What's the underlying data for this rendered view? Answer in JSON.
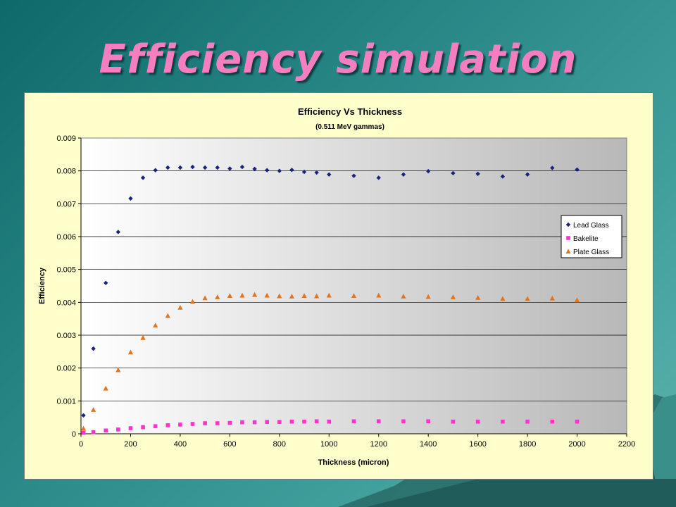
{
  "slide": {
    "title": "Efficiency simulation"
  },
  "chart_data": {
    "type": "scatter",
    "title": "Efficiency Vs Thickness",
    "subtitle": "(0.511 MeV gammas)",
    "xlabel": "Thickness (micron)",
    "ylabel": "Efficiency",
    "xlim": [
      0,
      2200
    ],
    "ylim": [
      0,
      0.009
    ],
    "xticks": [
      0,
      200,
      400,
      600,
      800,
      1000,
      1200,
      1400,
      1600,
      1800,
      2000,
      2200
    ],
    "yticks": [
      0,
      0.001,
      0.002,
      0.003,
      0.004,
      0.005,
      0.006,
      0.007,
      0.008,
      0.009
    ],
    "xtick_labels": [
      "0",
      "200",
      "400",
      "600",
      "800",
      "1000",
      "1200",
      "1400",
      "1600",
      "1800",
      "2000",
      "2200"
    ],
    "ytick_labels": [
      "0",
      "0.001",
      "0.002",
      "0.003",
      "0.004",
      "0.005",
      "0.006",
      "0.007",
      "0.008",
      "0.009"
    ],
    "grid": "horizontal",
    "legend_position": "right",
    "plot_background": "gradient white to gray",
    "series": [
      {
        "name": "Lead Glass",
        "marker": "diamond",
        "color": "#1a237e",
        "x": [
          10,
          50,
          100,
          150,
          200,
          250,
          300,
          350,
          400,
          450,
          500,
          550,
          600,
          650,
          700,
          750,
          800,
          850,
          900,
          950,
          1000,
          1100,
          1200,
          1300,
          1400,
          1500,
          1600,
          1700,
          1800,
          1900,
          2000
        ],
        "y": [
          0.00056,
          0.00259,
          0.00459,
          0.00614,
          0.00716,
          0.00779,
          0.00802,
          0.0081,
          0.0081,
          0.00812,
          0.0081,
          0.0081,
          0.00807,
          0.00812,
          0.00806,
          0.00802,
          0.008,
          0.00803,
          0.00797,
          0.00795,
          0.00789,
          0.00785,
          0.00779,
          0.00789,
          0.00799,
          0.00793,
          0.00791,
          0.00783,
          0.00789,
          0.00809,
          0.00804
        ]
      },
      {
        "name": "Bakelite",
        "marker": "square",
        "color": "#ff33cc",
        "x": [
          10,
          50,
          100,
          150,
          200,
          250,
          300,
          350,
          400,
          450,
          500,
          550,
          600,
          650,
          700,
          750,
          800,
          850,
          900,
          950,
          1000,
          1100,
          1200,
          1300,
          1400,
          1500,
          1600,
          1700,
          1800,
          1900,
          2000
        ],
        "y": [
          3e-05,
          5e-05,
          0.0001,
          0.00013,
          0.00017,
          0.0002,
          0.00023,
          0.00026,
          0.00028,
          0.0003,
          0.00032,
          0.00032,
          0.00033,
          0.00035,
          0.00035,
          0.00036,
          0.00036,
          0.00037,
          0.00037,
          0.00038,
          0.00037,
          0.00038,
          0.00038,
          0.00038,
          0.00038,
          0.00037,
          0.00037,
          0.00037,
          0.00037,
          0.00037,
          0.00037
        ]
      },
      {
        "name": "Plate Glass",
        "marker": "triangle",
        "color": "#e2751f",
        "x": [
          10,
          50,
          100,
          150,
          200,
          250,
          300,
          350,
          400,
          450,
          500,
          550,
          600,
          650,
          700,
          750,
          800,
          850,
          900,
          950,
          1000,
          1100,
          1200,
          1300,
          1400,
          1500,
          1600,
          1700,
          1800,
          1900,
          2000
        ],
        "y": [
          0.00016,
          0.00073,
          0.00138,
          0.00194,
          0.00248,
          0.00292,
          0.0033,
          0.00359,
          0.00384,
          0.00402,
          0.00413,
          0.00416,
          0.0042,
          0.00421,
          0.00423,
          0.00421,
          0.00419,
          0.00418,
          0.0042,
          0.00419,
          0.00421,
          0.0042,
          0.00421,
          0.00418,
          0.00417,
          0.00416,
          0.00414,
          0.00411,
          0.00411,
          0.00412,
          0.00407
        ]
      }
    ]
  }
}
